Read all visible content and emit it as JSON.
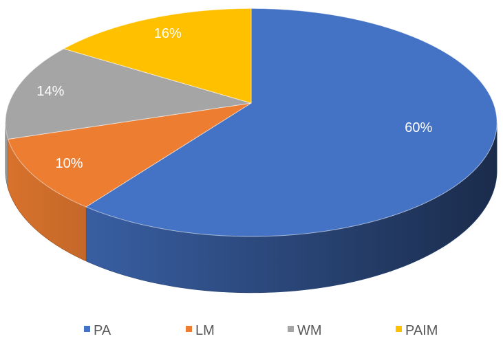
{
  "chart_data": {
    "type": "pie",
    "style": "3d",
    "categories": [
      "PA",
      "LM",
      "WM",
      "PAIM"
    ],
    "values": [
      60,
      10,
      14,
      16
    ],
    "data_labels": [
      "60%",
      "10%",
      "14%",
      "16%"
    ],
    "colors": [
      "#4472C4",
      "#ED7D31",
      "#A5A5A5",
      "#FFC000"
    ],
    "legend_position": "bottom"
  }
}
